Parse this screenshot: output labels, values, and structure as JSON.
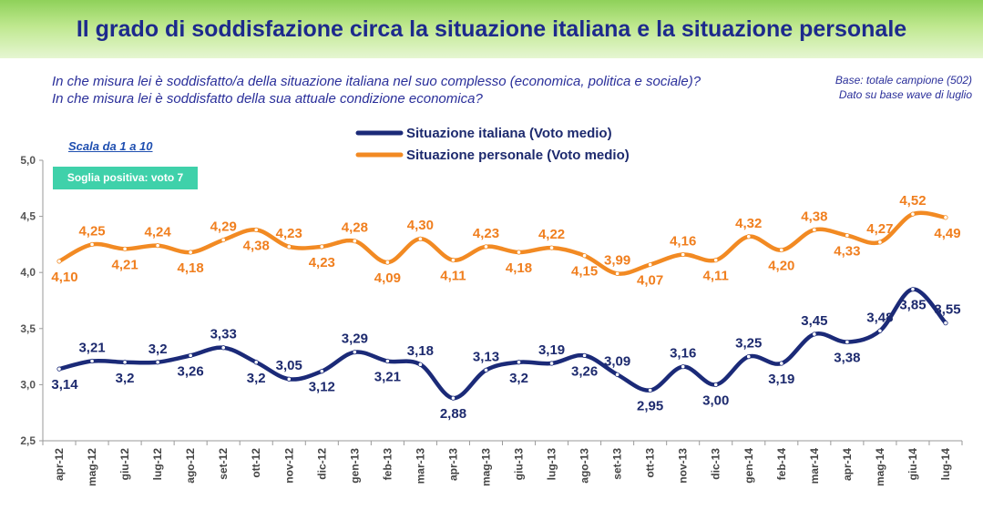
{
  "header": {
    "title": "Il grado di soddisfazione circa la situazione italiana e la situazione personale"
  },
  "questions": [
    "In che misura lei è soddisfatto/a della situazione italiana nel suo complesso (economica, politica e sociale)?",
    "In che misura lei è soddisfatto della sua attuale condizione economica?"
  ],
  "base_note": [
    "Base: totale campione (502)",
    "Dato su base wave di luglio"
  ],
  "scale_note": "Scala da 1 a 10",
  "threshold_badge": "Soglia positiva: voto 7",
  "colors": {
    "italiana": "#1b2a78",
    "personale": "#f28a23",
    "badge": "#3fd1aa",
    "header": "#8fd15a"
  },
  "chart_data": {
    "type": "line",
    "categories": [
      "apr-12",
      "mag-12",
      "giu-12",
      "lug-12",
      "ago-12",
      "set-12",
      "ott-12",
      "nov-12",
      "dic-12",
      "gen-13",
      "feb-13",
      "mar-13",
      "apr-13",
      "mag-13",
      "giu-13",
      "lug-13",
      "ago-13",
      "set-13",
      "ott-13",
      "nov-13",
      "dic-13",
      "gen-14",
      "feb-14",
      "mar-14",
      "apr-14",
      "mag-14",
      "giu-14",
      "lug-14"
    ],
    "ylim": [
      2.5,
      5.0
    ],
    "yticks": [
      "2,5",
      "3,0",
      "3,5",
      "4,0",
      "4,5",
      "5,0"
    ],
    "ytick_values": [
      2.5,
      3.0,
      3.5,
      4.0,
      4.5,
      5.0
    ],
    "legend_position": "top-center",
    "grid": false,
    "series": [
      {
        "name": "Situazione italiana (Voto medio)",
        "values": [
          3.14,
          3.21,
          3.2,
          3.2,
          3.26,
          3.33,
          3.2,
          3.05,
          3.12,
          3.29,
          3.21,
          3.18,
          2.88,
          3.13,
          3.2,
          3.19,
          3.26,
          3.09,
          2.95,
          3.16,
          3.0,
          3.25,
          3.19,
          3.45,
          3.38,
          3.48,
          3.85,
          3.55
        ],
        "labels": [
          "3,14",
          "3,21",
          "3,2",
          "3,2",
          "3,26",
          "3,33",
          "3,2",
          "3,05",
          "3,12",
          "3,29",
          "3,21",
          "3,18",
          "2,88",
          "3,13",
          "3,2",
          "3,19",
          "3,26",
          "3,09",
          "2,95",
          "3,16",
          "3,00",
          "3,25",
          "3,19",
          "3,45",
          "3,38",
          "3,48",
          "3,85",
          "3,55"
        ]
      },
      {
        "name": "Situazione personale (Voto medio)",
        "values": [
          4.1,
          4.25,
          4.21,
          4.24,
          4.18,
          4.29,
          4.38,
          4.23,
          4.23,
          4.28,
          4.09,
          4.3,
          4.11,
          4.23,
          4.18,
          4.22,
          4.15,
          3.99,
          4.07,
          4.16,
          4.11,
          4.32,
          4.2,
          4.38,
          4.33,
          4.27,
          4.52,
          4.49
        ],
        "labels": [
          "4,10",
          "4,25",
          "4,21",
          "4,24",
          "4,18",
          "4,29",
          "4,38",
          "4,23",
          "4,23",
          "4,28",
          "4,09",
          "4,30",
          "4,11",
          "4,23",
          "4,18",
          "4,22",
          "4,15",
          "3,99",
          "4,07",
          "4,16",
          "4,11",
          "4,32",
          "4,20",
          "4,38",
          "4,33",
          "4,27",
          "4,52",
          "4,49"
        ]
      }
    ]
  }
}
